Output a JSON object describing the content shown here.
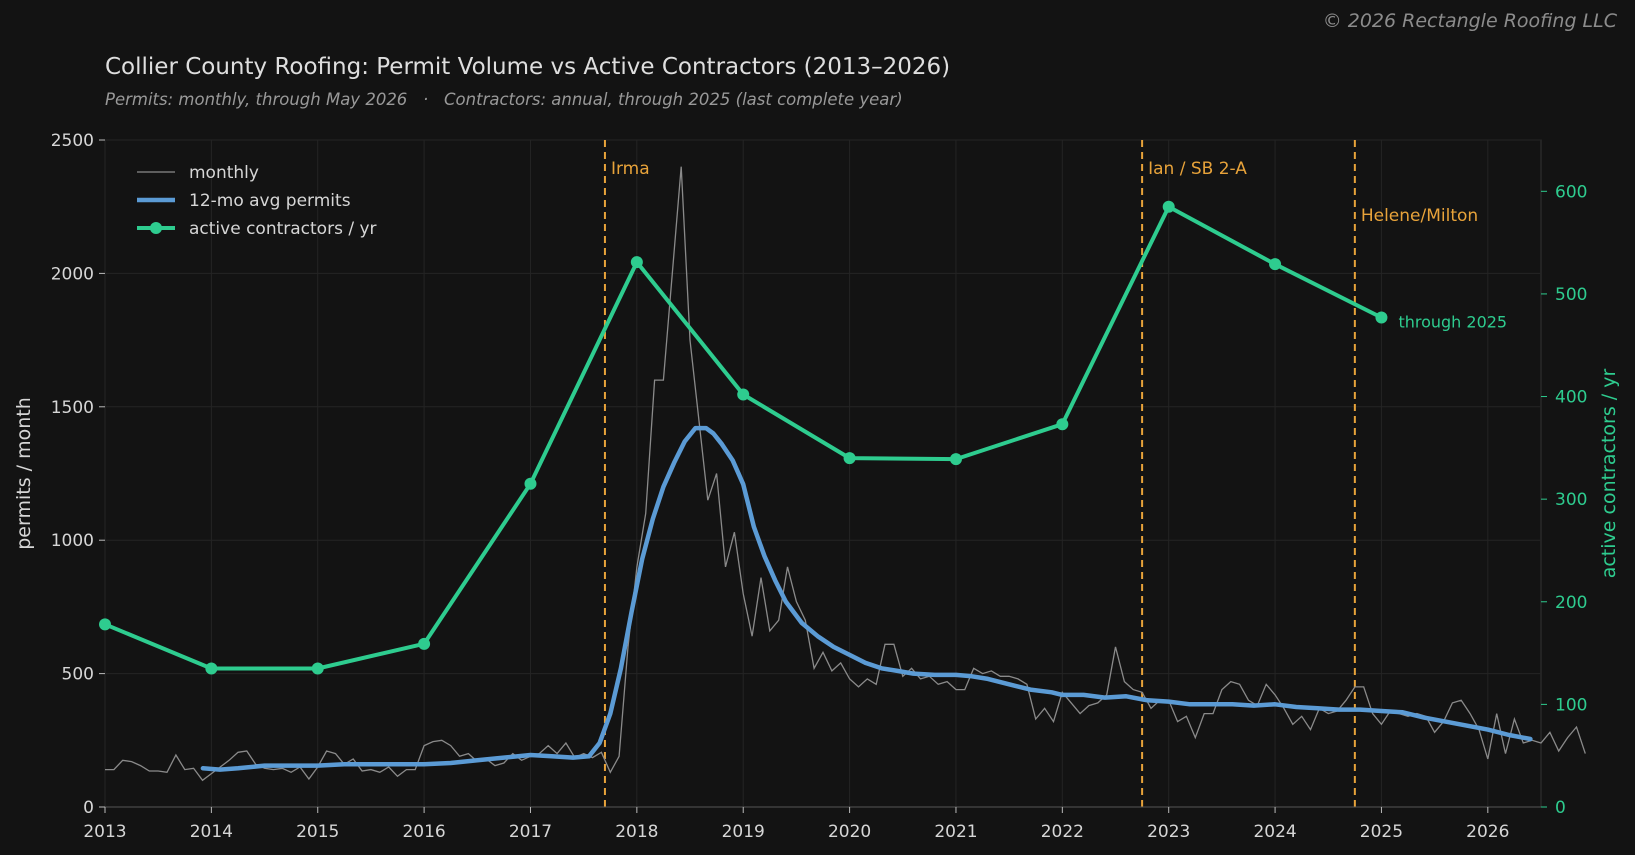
{
  "copyright": "© 2026 Rectangle Roofing LLC",
  "chart_data": {
    "type": "line",
    "title": "Collier County Roofing: Permit Volume vs Active Contractors  (2013–2026)",
    "subtitle": "Permits: monthly, through May 2026   ·   Contractors: annual, through 2025 (last complete year)",
    "ylabel": "permits / month",
    "y2label": "active contractors / yr",
    "xlim": [
      2013,
      2026.5
    ],
    "ylim": [
      0,
      2500
    ],
    "y2lim": [
      0,
      650
    ],
    "x_ticks": [
      2013,
      2014,
      2015,
      2016,
      2017,
      2018,
      2019,
      2020,
      2021,
      2022,
      2023,
      2024,
      2025,
      2026
    ],
    "y_ticks": [
      0,
      500,
      1000,
      1500,
      2000,
      2500
    ],
    "y2_ticks": [
      0,
      100,
      200,
      300,
      400,
      500,
      600
    ],
    "grid": true,
    "legend": {
      "position": "top-left",
      "entries": [
        "monthly",
        "12-mo avg permits",
        "active contractors / yr"
      ]
    },
    "colors": {
      "monthly": "#8a8a8a",
      "avg": "#5b9bd5",
      "contractors": "#2ecc8f",
      "events": "#e8a33a"
    },
    "events": [
      {
        "x": 2017.7,
        "label": "Irma"
      },
      {
        "x": 2022.75,
        "label": "Ian / SB 2-A"
      },
      {
        "x": 2024.75,
        "label": "Helene/Milton"
      }
    ],
    "contractor_annotation": {
      "x": 2025,
      "label": "through 2025"
    },
    "series": [
      {
        "name": "monthly",
        "x_start": 2013.0,
        "step": 0.0833333,
        "values": [
          140,
          140,
          175,
          170,
          155,
          135,
          135,
          130,
          195,
          140,
          145,
          100,
          125,
          150,
          175,
          205,
          210,
          160,
          145,
          140,
          145,
          130,
          150,
          105,
          150,
          210,
          200,
          160,
          180,
          135,
          140,
          130,
          150,
          115,
          140,
          140,
          230,
          245,
          250,
          230,
          190,
          200,
          170,
          180,
          155,
          165,
          200,
          175,
          190,
          200,
          230,
          200,
          240,
          185,
          200,
          185,
          205,
          130,
          190,
          600,
          900,
          1100,
          1600,
          1600,
          2000,
          2400,
          1750,
          1450,
          1150,
          1250,
          900,
          1030,
          800,
          640,
          860,
          660,
          700,
          900,
          770,
          700,
          520,
          580,
          510,
          540,
          480,
          450,
          480,
          460,
          610,
          610,
          490,
          520,
          480,
          490,
          460,
          470,
          440,
          440,
          520,
          500,
          510,
          490,
          490,
          480,
          460,
          330,
          370,
          320,
          430,
          390,
          350,
          380,
          390,
          420,
          600,
          470,
          440,
          430,
          370,
          400,
          400,
          320,
          340,
          260,
          350,
          350,
          440,
          470,
          460,
          400,
          380,
          460,
          420,
          370,
          310,
          340,
          290,
          370,
          350,
          360,
          400,
          450,
          450,
          350,
          310,
          360,
          350,
          340,
          350,
          340,
          280,
          320,
          390,
          400,
          350,
          290,
          180,
          350,
          200,
          330,
          240,
          250,
          240,
          280,
          210,
          260,
          300,
          200
        ]
      },
      {
        "name": "12-mo avg permits",
        "x": [
          2013.92,
          2014.08,
          2014.25,
          2014.5,
          2014.75,
          2015.0,
          2015.25,
          2015.5,
          2015.75,
          2016.0,
          2016.25,
          2016.5,
          2016.75,
          2017.0,
          2017.2,
          2017.4,
          2017.55,
          2017.65,
          2017.75,
          2017.85,
          2017.95,
          2018.05,
          2018.15,
          2018.25,
          2018.35,
          2018.45,
          2018.55,
          2018.65,
          2018.72,
          2018.8,
          2018.9,
          2019.0,
          2019.1,
          2019.2,
          2019.3,
          2019.4,
          2019.55,
          2019.7,
          2019.85,
          2020.0,
          2020.15,
          2020.3,
          2020.45,
          2020.6,
          2020.8,
          2021.0,
          2021.15,
          2021.3,
          2021.5,
          2021.7,
          2021.9,
          2022.0,
          2022.2,
          2022.4,
          2022.6,
          2022.8,
          2023.0,
          2023.2,
          2023.4,
          2023.6,
          2023.8,
          2024.0,
          2024.2,
          2024.4,
          2024.6,
          2024.8,
          2025.0,
          2025.2,
          2025.4,
          2025.6,
          2025.8,
          2026.0,
          2026.2,
          2026.4
        ],
        "values": [
          145,
          140,
          145,
          155,
          155,
          155,
          160,
          160,
          160,
          160,
          165,
          175,
          185,
          195,
          190,
          185,
          190,
          240,
          350,
          520,
          730,
          930,
          1080,
          1200,
          1290,
          1370,
          1420,
          1420,
          1400,
          1360,
          1300,
          1210,
          1050,
          940,
          850,
          770,
          690,
          640,
          600,
          570,
          540,
          520,
          510,
          500,
          495,
          495,
          490,
          480,
          460,
          440,
          430,
          420,
          420,
          410,
          415,
          400,
          395,
          385,
          385,
          385,
          380,
          385,
          375,
          370,
          365,
          365,
          360,
          355,
          335,
          320,
          305,
          290,
          270,
          255
        ]
      },
      {
        "name": "active contractors / yr",
        "x": [
          2013,
          2014,
          2015,
          2016,
          2017,
          2018,
          2019,
          2020,
          2021,
          2022,
          2023,
          2024,
          2025
        ],
        "values": [
          178,
          135,
          135,
          159,
          315,
          531,
          402,
          340,
          339,
          373,
          585,
          529,
          477
        ]
      }
    ]
  }
}
